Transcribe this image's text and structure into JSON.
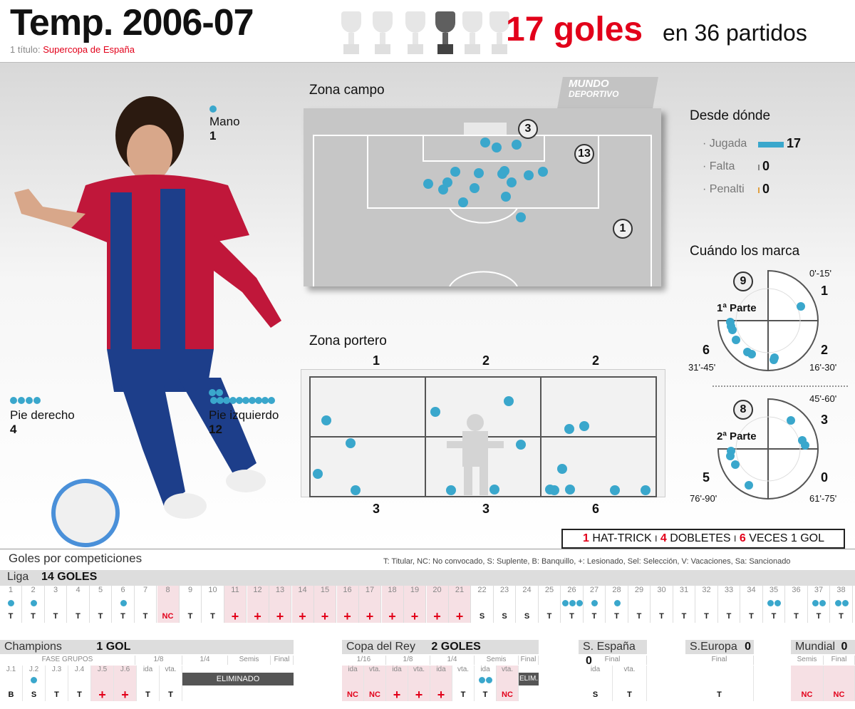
{
  "header": {
    "title": "Temp. 2006-07",
    "subtitle_prefix": "1 título:",
    "subtitle_value": "Supercopa de España",
    "goals_big": "17 goles",
    "goals_small": "en 36 partidos"
  },
  "body": {
    "mano_label": "Mano",
    "mano_value": "1",
    "pie_derecho_label": "Pie derecho",
    "pie_derecho_value": "4",
    "pie_izquierdo_label": "Pie izquierdo",
    "pie_izquierdo_value": "12"
  },
  "zona_campo": {
    "label": "Zona campo",
    "logo_line1": "MUNDO",
    "logo_line2": "DEPORTIVO",
    "badge_top": "3",
    "badge_area": "13",
    "badge_outside": "1"
  },
  "zona_portero": {
    "label": "Zona portero",
    "top": [
      "1",
      "2",
      "2"
    ],
    "bottom": [
      "3",
      "3",
      "6"
    ]
  },
  "desde_donde": {
    "title": "Desde dónde",
    "items": [
      {
        "label": "· Jugada",
        "value": "17",
        "color": "#3aa7cc",
        "fraction": 1.0
      },
      {
        "label": "· Falta",
        "value": "0",
        "color": "#888888",
        "fraction": 0
      },
      {
        "label": "· Penalti",
        "value": "0",
        "color": "#e0a040",
        "fraction": 0
      }
    ]
  },
  "cuando": {
    "title": "Cuándo los marca",
    "first": {
      "total": "9",
      "label": "1ª Parte",
      "q1_range": "0'-15'",
      "q1": "1",
      "q2_range": "16'-30'",
      "q2": "2",
      "q3_range": "31'-45'",
      "q3": "6"
    },
    "second": {
      "total": "8",
      "label": "2ª Parte",
      "q1_range": "45'-60'",
      "q1": "3",
      "q2_range": "61'-75'",
      "q2": "0",
      "q3_range": "76'-90'",
      "q3": "5"
    }
  },
  "stats": {
    "hat_n": "1",
    "hat": "HAT-TRICK",
    "sep1": "I",
    "dob_n": "4",
    "dob": "DOBLETES",
    "sep2": "I",
    "gol_n": "6",
    "gol": "VECES 1 GOL"
  },
  "bottom": {
    "title": "Goles por competiciones",
    "legend": "T: Titular, NC: No convocado, S: Suplente, B: Banquillo, +: Lesionado, Sel: Selección, V: Vacaciones, Sa: Sancionado",
    "liga_label": "Liga",
    "liga_goals": "14 GOLES",
    "liga": [
      {
        "n": "1",
        "g": 1,
        "s": "T"
      },
      {
        "n": "2",
        "g": 1,
        "s": "T"
      },
      {
        "n": "3",
        "g": 0,
        "s": "T"
      },
      {
        "n": "4",
        "g": 0,
        "s": "T"
      },
      {
        "n": "5",
        "g": 0,
        "s": "T"
      },
      {
        "n": "6",
        "g": 1,
        "s": "T"
      },
      {
        "n": "7",
        "g": 0,
        "s": "T"
      },
      {
        "n": "8",
        "g": 0,
        "s": "NC",
        "p": 1
      },
      {
        "n": "9",
        "g": 0,
        "s": "T"
      },
      {
        "n": "10",
        "g": 0,
        "s": "T"
      },
      {
        "n": "11",
        "g": 0,
        "s": "+",
        "p": 1
      },
      {
        "n": "12",
        "g": 0,
        "s": "+",
        "p": 1
      },
      {
        "n": "13",
        "g": 0,
        "s": "+",
        "p": 1
      },
      {
        "n": "14",
        "g": 0,
        "s": "+",
        "p": 1
      },
      {
        "n": "15",
        "g": 0,
        "s": "+",
        "p": 1
      },
      {
        "n": "16",
        "g": 0,
        "s": "+",
        "p": 1
      },
      {
        "n": "17",
        "g": 0,
        "s": "+",
        "p": 1
      },
      {
        "n": "18",
        "g": 0,
        "s": "+",
        "p": 1
      },
      {
        "n": "19",
        "g": 0,
        "s": "+",
        "p": 1
      },
      {
        "n": "20",
        "g": 0,
        "s": "+",
        "p": 1
      },
      {
        "n": "21",
        "g": 0,
        "s": "+",
        "p": 1
      },
      {
        "n": "22",
        "g": 0,
        "s": "S"
      },
      {
        "n": "23",
        "g": 0,
        "s": "S"
      },
      {
        "n": "24",
        "g": 0,
        "s": "S"
      },
      {
        "n": "25",
        "g": 0,
        "s": "T"
      },
      {
        "n": "26",
        "g": 3,
        "s": "T"
      },
      {
        "n": "27",
        "g": 1,
        "s": "T"
      },
      {
        "n": "28",
        "g": 1,
        "s": "T"
      },
      {
        "n": "29",
        "g": 0,
        "s": "T"
      },
      {
        "n": "30",
        "g": 0,
        "s": "T"
      },
      {
        "n": "31",
        "g": 0,
        "s": "T"
      },
      {
        "n": "32",
        "g": 0,
        "s": "T"
      },
      {
        "n": "33",
        "g": 0,
        "s": "T"
      },
      {
        "n": "34",
        "g": 0,
        "s": "T"
      },
      {
        "n": "35",
        "g": 2,
        "s": "T"
      },
      {
        "n": "36",
        "g": 0,
        "s": "T"
      },
      {
        "n": "37",
        "g": 2,
        "s": "T"
      },
      {
        "n": "38",
        "g": 2,
        "s": "T"
      }
    ],
    "champions": {
      "label": "Champions",
      "goals": "1 GOL",
      "groups_label": "FASE GRUPOS",
      "r16": "1/8",
      "qf": "1/4",
      "sf": "Semis",
      "final": "Final",
      "eliminated": "ELIMINADO",
      "matches": [
        {
          "n": "J.1",
          "g": 0,
          "s": "B"
        },
        {
          "n": "J.2",
          "g": 1,
          "s": "S"
        },
        {
          "n": "J.3",
          "g": 0,
          "s": "T"
        },
        {
          "n": "J.4",
          "g": 0,
          "s": "T"
        },
        {
          "n": "J.5",
          "g": 0,
          "s": "+",
          "p": 1
        },
        {
          "n": "J.6",
          "g": 0,
          "s": "+",
          "p": 1
        },
        {
          "n": "ida",
          "g": 0,
          "s": "T"
        },
        {
          "n": "vta.",
          "g": 0,
          "s": "T"
        }
      ]
    },
    "copa": {
      "label": "Copa del Rey",
      "goals": "2  GOLES",
      "r32": "1/16",
      "r16": "1/8",
      "qf": "1/4",
      "sf": "Semis",
      "final": "Final",
      "eliminated": "ELIM.",
      "matches": [
        {
          "n": "ida",
          "g": 0,
          "s": "NC",
          "p": 1
        },
        {
          "n": "vta.",
          "g": 0,
          "s": "NC",
          "p": 1
        },
        {
          "n": "ida",
          "g": 0,
          "s": "+",
          "p": 1
        },
        {
          "n": "vta.",
          "g": 0,
          "s": "+",
          "p": 1
        },
        {
          "n": "ida",
          "g": 0,
          "s": "+",
          "p": 1
        },
        {
          "n": "vta.",
          "g": 0,
          "s": "T"
        },
        {
          "n": "ida",
          "g": 2,
          "s": "T"
        },
        {
          "n": "vta.",
          "g": 0,
          "s": "NC",
          "p": 1
        }
      ]
    },
    "supercopa_es": {
      "label": "S. España",
      "goals": "0",
      "final": "Final",
      "ida": "ida",
      "vta": "vta.",
      "s1": "S",
      "s2": "T"
    },
    "supercopa_eu": {
      "label": "S.Europa",
      "goals": "0",
      "final": "Final",
      "s1": "T"
    },
    "mundial": {
      "label": "Mundial",
      "goals": "0",
      "semis": "Semis",
      "final": "Final",
      "s1": "NC",
      "s2": "NC"
    }
  }
}
